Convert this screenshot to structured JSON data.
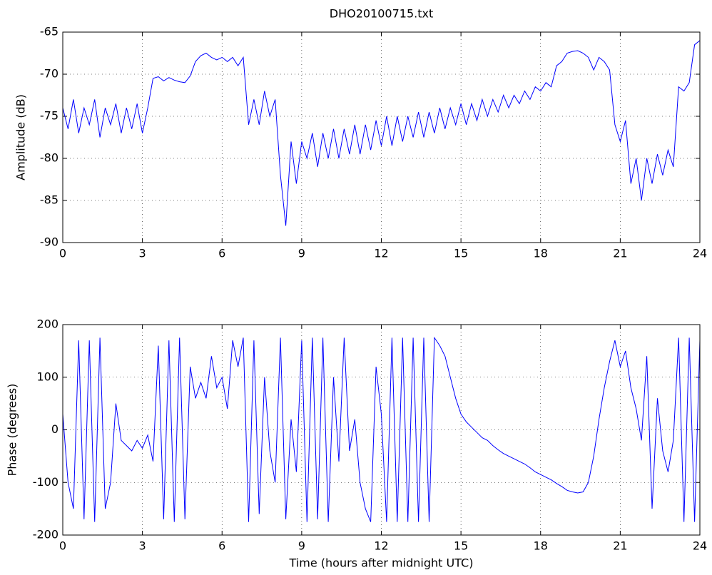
{
  "chart_data": [
    {
      "type": "line",
      "title": "DHO20100715.txt",
      "ylabel": "Amplitude (dB)",
      "x": [
        0,
        0.2,
        0.4,
        0.6,
        0.8,
        1,
        1.2,
        1.4,
        1.6,
        1.8,
        2,
        2.2,
        2.4,
        2.6,
        2.8,
        3,
        3.2,
        3.4,
        3.6,
        3.8,
        4,
        4.2,
        4.4,
        4.6,
        4.8,
        5,
        5.2,
        5.4,
        5.6,
        5.8,
        6,
        6.2,
        6.4,
        6.6,
        6.8,
        7,
        7.2,
        7.4,
        7.6,
        7.8,
        8,
        8.2,
        8.4,
        8.6,
        8.8,
        9,
        9.2,
        9.4,
        9.6,
        9.8,
        10,
        10.2,
        10.4,
        10.6,
        10.8,
        11,
        11.2,
        11.4,
        11.6,
        11.8,
        12,
        12.2,
        12.4,
        12.6,
        12.8,
        13,
        13.2,
        13.4,
        13.6,
        13.8,
        14,
        14.2,
        14.4,
        14.6,
        14.8,
        15,
        15.2,
        15.4,
        15.6,
        15.8,
        16,
        16.2,
        16.4,
        16.6,
        16.8,
        17,
        17.2,
        17.4,
        17.6,
        17.8,
        18,
        18.2,
        18.4,
        18.6,
        18.8,
        19,
        19.2,
        19.4,
        19.6,
        19.8,
        20,
        20.2,
        20.4,
        20.6,
        20.8,
        21,
        21.2,
        21.4,
        21.6,
        21.8,
        22,
        22.2,
        22.4,
        22.6,
        22.8,
        23,
        23.2,
        23.4,
        23.6,
        23.8,
        24
      ],
      "series": [
        {
          "color": "#0000ff",
          "values": [
            -74,
            -76.5,
            -73,
            -77,
            -74,
            -76,
            -73,
            -77.5,
            -74,
            -76,
            -73.5,
            -77,
            -74,
            -76.5,
            -73.5,
            -77,
            -74,
            -70.5,
            -70.3,
            -70.8,
            -70.4,
            -70.7,
            -70.9,
            -71,
            -70.2,
            -68.5,
            -67.8,
            -67.5,
            -68,
            -68.3,
            -68,
            -68.5,
            -68,
            -69,
            -68,
            -76,
            -73,
            -76,
            -72,
            -75,
            -73,
            -82,
            -88,
            -78,
            -83,
            -78,
            -80,
            -77,
            -81,
            -77,
            -80,
            -76.5,
            -80,
            -76.5,
            -79.5,
            -76,
            -79.5,
            -76,
            -79,
            -75.5,
            -78.5,
            -75,
            -78.5,
            -75,
            -78,
            -75,
            -77.5,
            -74.5,
            -77.5,
            -74.5,
            -77,
            -74,
            -76.5,
            -74,
            -76,
            -73.5,
            -76,
            -73.5,
            -75.5,
            -73,
            -75,
            -73,
            -74.5,
            -72.5,
            -74,
            -72.5,
            -73.5,
            -72,
            -73,
            -71.5,
            -72,
            -71,
            -71.5,
            -69,
            -68.5,
            -67.5,
            -67.3,
            -67.2,
            -67.5,
            -68,
            -69.5,
            -68,
            -68.5,
            -69.5,
            -76,
            -78,
            -75.5,
            -83,
            -80,
            -85,
            -80,
            -83,
            -79.5,
            -82,
            -79,
            -81,
            -71.5,
            -72,
            -71,
            -66.5,
            -66
          ]
        }
      ],
      "xlim": [
        0,
        24
      ],
      "xticks": [
        0,
        3,
        6,
        9,
        12,
        15,
        18,
        21,
        24
      ],
      "ylim": [
        -90,
        -65
      ],
      "yticks": [
        -90,
        -85,
        -80,
        -75,
        -70,
        -65
      ],
      "grid": true
    },
    {
      "type": "line",
      "xlabel": "Time (hours after midnight UTC)",
      "ylabel": "Phase (degrees)",
      "x": [
        0,
        0.2,
        0.4,
        0.6,
        0.8,
        1,
        1.2,
        1.4,
        1.6,
        1.8,
        2,
        2.2,
        2.4,
        2.6,
        2.8,
        3,
        3.2,
        3.4,
        3.6,
        3.8,
        4,
        4.2,
        4.4,
        4.6,
        4.8,
        5,
        5.2,
        5.4,
        5.6,
        5.8,
        6,
        6.2,
        6.4,
        6.6,
        6.8,
        7,
        7.2,
        7.4,
        7.6,
        7.8,
        8,
        8.2,
        8.4,
        8.6,
        8.8,
        9,
        9.2,
        9.4,
        9.6,
        9.8,
        10,
        10.2,
        10.4,
        10.6,
        10.8,
        11,
        11.2,
        11.4,
        11.6,
        11.8,
        12,
        12.2,
        12.4,
        12.6,
        12.8,
        13,
        13.2,
        13.4,
        13.6,
        13.8,
        14,
        14.2,
        14.4,
        14.6,
        14.8,
        15,
        15.2,
        15.4,
        15.6,
        15.8,
        16,
        16.2,
        16.4,
        16.6,
        16.8,
        17,
        17.2,
        17.4,
        17.6,
        17.8,
        18,
        18.2,
        18.4,
        18.6,
        18.8,
        19,
        19.2,
        19.4,
        19.6,
        19.8,
        20,
        20.2,
        20.4,
        20.6,
        20.8,
        21,
        21.2,
        21.4,
        21.6,
        21.8,
        22,
        22.2,
        22.4,
        22.6,
        22.8,
        23,
        23.2,
        23.4,
        23.6,
        23.8,
        24
      ],
      "series": [
        {
          "color": "#0000ff",
          "values": [
            30,
            -100,
            -150,
            170,
            -170,
            170,
            -175,
            175,
            -150,
            -100,
            50,
            -20,
            -30,
            -40,
            -20,
            -35,
            -10,
            -60,
            160,
            -170,
            170,
            -175,
            175,
            -170,
            120,
            60,
            90,
            60,
            140,
            80,
            100,
            40,
            170,
            120,
            175,
            -175,
            170,
            -160,
            100,
            -40,
            -100,
            175,
            -170,
            20,
            -80,
            170,
            -175,
            175,
            -170,
            175,
            -175,
            100,
            -60,
            175,
            -40,
            20,
            -100,
            -150,
            -175,
            120,
            30,
            -175,
            175,
            -175,
            175,
            -175,
            175,
            -175,
            175,
            -175,
            175,
            160,
            140,
            100,
            60,
            30,
            15,
            5,
            -5,
            -15,
            -20,
            -30,
            -38,
            -45,
            -50,
            -55,
            -60,
            -65,
            -72,
            -80,
            -85,
            -90,
            -95,
            -102,
            -108,
            -115,
            -118,
            -120,
            -118,
            -100,
            -50,
            20,
            80,
            130,
            170,
            120,
            150,
            80,
            40,
            -20,
            140,
            -150,
            60,
            -40,
            -80,
            -20,
            175,
            -175,
            175,
            -175,
            170
          ]
        }
      ],
      "xlim": [
        0,
        24
      ],
      "xticks": [
        0,
        3,
        6,
        9,
        12,
        15,
        18,
        21,
        24
      ],
      "ylim": [
        -200,
        200
      ],
      "yticks": [
        -200,
        -100,
        0,
        100,
        200
      ],
      "grid": true
    }
  ]
}
